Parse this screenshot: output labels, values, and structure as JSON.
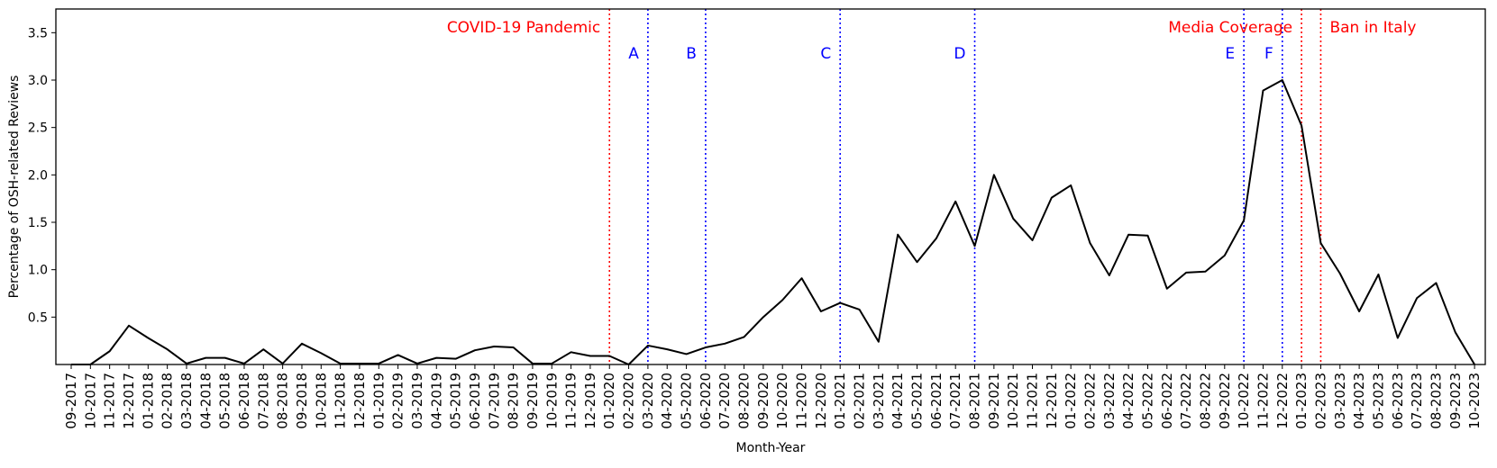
{
  "chart_data": {
    "type": "line",
    "xlabel": "Month-Year",
    "ylabel": "Percentage of OSH-related Reviews",
    "yticks": [
      0.5,
      1.0,
      1.5,
      2.0,
      2.5,
      3.0,
      3.5
    ],
    "ylim": [
      0,
      3.75
    ],
    "grid": false,
    "line_color": "#000000",
    "categories": [
      "09-2017",
      "10-2017",
      "11-2017",
      "12-2017",
      "01-2018",
      "02-2018",
      "03-2018",
      "04-2018",
      "05-2018",
      "06-2018",
      "07-2018",
      "08-2018",
      "09-2018",
      "10-2018",
      "11-2018",
      "12-2018",
      "01-2019",
      "02-2019",
      "03-2019",
      "04-2019",
      "05-2019",
      "06-2019",
      "07-2019",
      "08-2019",
      "09-2019",
      "10-2019",
      "11-2019",
      "12-2019",
      "01-2020",
      "02-2020",
      "03-2020",
      "04-2020",
      "05-2020",
      "06-2020",
      "07-2020",
      "08-2020",
      "09-2020",
      "10-2020",
      "11-2020",
      "12-2020",
      "01-2021",
      "02-2021",
      "03-2021",
      "04-2021",
      "05-2021",
      "06-2021",
      "07-2021",
      "08-2021",
      "09-2021",
      "10-2021",
      "11-2021",
      "12-2021",
      "01-2022",
      "02-2022",
      "03-2022",
      "04-2022",
      "05-2022",
      "06-2022",
      "07-2022",
      "08-2022",
      "09-2022",
      "10-2022",
      "11-2022",
      "12-2022",
      "01-2023",
      "02-2023",
      "03-2023",
      "04-2023",
      "05-2023",
      "06-2023",
      "07-2023",
      "08-2023",
      "09-2023",
      "10-2023"
    ],
    "values": [
      0.0,
      0.0,
      0.14,
      0.41,
      0.28,
      0.16,
      0.01,
      0.07,
      0.07,
      0.01,
      0.16,
      0.01,
      0.22,
      0.12,
      0.01,
      0.01,
      0.01,
      0.1,
      0.01,
      0.07,
      0.06,
      0.15,
      0.19,
      0.18,
      0.01,
      0.01,
      0.13,
      0.09,
      0.09,
      0.0,
      0.2,
      0.16,
      0.11,
      0.18,
      0.22,
      0.29,
      0.5,
      0.68,
      0.91,
      0.56,
      0.65,
      0.58,
      0.24,
      1.37,
      1.08,
      1.33,
      1.72,
      1.25,
      2.0,
      1.54,
      1.31,
      1.76,
      1.89,
      1.28,
      0.94,
      1.37,
      1.36,
      0.8,
      0.97,
      0.98,
      1.15,
      1.52,
      2.89,
      3.0,
      2.52,
      1.28,
      0.96,
      0.56,
      0.95,
      0.28,
      0.7,
      0.86,
      0.34,
      0.0
    ],
    "annotations": [
      {
        "label": "COVID-19 Pandemic",
        "at": "01-2020",
        "color": "#ff0000",
        "side": "left",
        "row": "top"
      },
      {
        "label": "A",
        "at": "03-2020",
        "color": "#0000ff",
        "side": "left",
        "row": "second"
      },
      {
        "label": "B",
        "at": "06-2020",
        "color": "#0000ff",
        "side": "left",
        "row": "second"
      },
      {
        "label": "C",
        "at": "01-2021",
        "color": "#0000ff",
        "side": "left",
        "row": "second"
      },
      {
        "label": "D",
        "at": "08-2021",
        "color": "#0000ff",
        "side": "left",
        "row": "second"
      },
      {
        "label": "E",
        "at": "10-2022",
        "color": "#0000ff",
        "side": "left",
        "row": "second"
      },
      {
        "label": "F",
        "at": "12-2022",
        "color": "#0000ff",
        "side": "left",
        "row": "second"
      },
      {
        "label": "Media Coverage",
        "at": "01-2023",
        "color": "#ff0000",
        "side": "left",
        "row": "top"
      },
      {
        "label": "Ban in Italy",
        "at": "02-2023",
        "color": "#ff0000",
        "side": "right",
        "row": "top"
      }
    ]
  }
}
